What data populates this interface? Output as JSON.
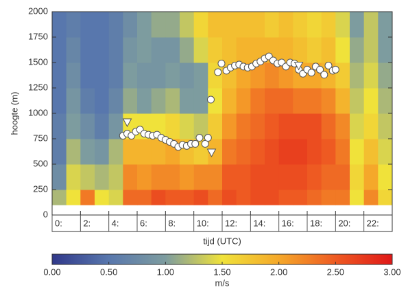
{
  "chart_data": {
    "type": "heatmap",
    "xlabel": "tijd (UTC)",
    "ylabel": "hoogte (m)",
    "colorbar_label": "m/s",
    "xlim": [
      0,
      24
    ],
    "ylim": [
      0,
      2000
    ],
    "xticks": [
      {
        "value": 0,
        "label": "0:"
      },
      {
        "value": 2,
        "label": "2:"
      },
      {
        "value": 4,
        "label": "4:"
      },
      {
        "value": 6,
        "label": "6:"
      },
      {
        "value": 8,
        "label": "8:"
      },
      {
        "value": 10,
        "label": "10:"
      },
      {
        "value": 12,
        "label": "12:"
      },
      {
        "value": 14,
        "label": "14:"
      },
      {
        "value": 16,
        "label": "16:"
      },
      {
        "value": 18,
        "label": "18:"
      },
      {
        "value": 20,
        "label": "20:"
      },
      {
        "value": 22,
        "label": "22:"
      }
    ],
    "yticks": [
      0,
      250,
      500,
      750,
      1000,
      1250,
      1500,
      1750,
      2000
    ],
    "clim": [
      0,
      3
    ],
    "cticks": [
      {
        "value": 0,
        "label": "0.00"
      },
      {
        "value": 0.5,
        "label": "0.50"
      },
      {
        "value": 1,
        "label": "1.00"
      },
      {
        "value": 1.5,
        "label": "1.50"
      },
      {
        "value": 2,
        "label": "2.00"
      },
      {
        "value": 2.5,
        "label": "2.50"
      },
      {
        "value": 3,
        "label": "3.00"
      }
    ],
    "colorscale": [
      "#30388a",
      "#5877ad",
      "#7d9c9f",
      "#f0e23a",
      "#f5a82a",
      "#ee5a22",
      "#e01818"
    ],
    "x_bins": [
      0,
      1,
      2,
      3,
      4,
      5,
      6,
      7,
      8,
      9,
      10,
      11,
      12,
      13,
      14,
      15,
      16,
      17,
      18,
      19,
      20,
      21,
      22,
      23,
      24
    ],
    "y_bins": [
      100,
      250,
      500,
      750,
      1000,
      1250,
      1500,
      1750,
      2000
    ],
    "values": [
      [
        1.2,
        0.8,
        0.6,
        0.6,
        0.5,
        0.5,
        0.5,
        0.5
      ],
      [
        1.5,
        1.4,
        1.2,
        1.0,
        0.9,
        0.8,
        0.7,
        0.6
      ],
      [
        2.3,
        1.3,
        1.0,
        0.8,
        0.6,
        0.5,
        0.5,
        0.5
      ],
      [
        1.5,
        1.2,
        0.9,
        0.6,
        0.5,
        0.5,
        0.5,
        0.5
      ],
      [
        1.4,
        1.3,
        1.2,
        0.9,
        0.7,
        0.6,
        0.6,
        0.6
      ],
      [
        2.4,
        2.2,
        1.9,
        1.5,
        1.1,
        1.0,
        0.9,
        0.8
      ],
      [
        2.4,
        2.1,
        1.9,
        1.5,
        1.0,
        0.9,
        1.0,
        1.0
      ],
      [
        2.6,
        2.2,
        1.9,
        1.5,
        1.1,
        0.9,
        0.9,
        1.1
      ],
      [
        2.5,
        2.2,
        2.0,
        1.6,
        1.2,
        1.0,
        0.9,
        1.1
      ],
      [
        2.5,
        2.1,
        1.8,
        1.4,
        1.0,
        0.9,
        1.1,
        1.3
      ],
      [
        2.6,
        2.2,
        1.7,
        1.3,
        1.0,
        1.0,
        1.4,
        1.6
      ],
      [
        2.4,
        2.2,
        1.9,
        1.7,
        1.5,
        1.6,
        1.7,
        1.8
      ],
      [
        2.6,
        2.5,
        2.3,
        2.1,
        1.9,
        1.8,
        1.8,
        1.8
      ],
      [
        2.5,
        2.5,
        2.4,
        2.3,
        2.1,
        2.0,
        1.9,
        1.8
      ],
      [
        2.6,
        2.6,
        2.5,
        2.4,
        2.3,
        2.1,
        1.9,
        1.8
      ],
      [
        2.6,
        2.6,
        2.6,
        2.5,
        2.4,
        2.2,
        1.9,
        1.7
      ],
      [
        2.5,
        2.6,
        2.7,
        2.6,
        2.4,
        2.1,
        1.9,
        1.8
      ],
      [
        2.5,
        2.6,
        2.7,
        2.6,
        2.3,
        2.0,
        1.8,
        1.7
      ],
      [
        2.4,
        2.5,
        2.6,
        2.6,
        2.3,
        2.0,
        1.7,
        1.6
      ],
      [
        2.3,
        2.4,
        2.5,
        2.4,
        2.2,
        1.9,
        1.8,
        1.7
      ],
      [
        2.3,
        2.4,
        2.3,
        2.2,
        1.9,
        1.7,
        1.5,
        1.4
      ],
      [
        1.5,
        1.6,
        1.5,
        1.4,
        1.3,
        1.2,
        1.1,
        1.0
      ],
      [
        2.2,
        2.0,
        1.8,
        1.6,
        1.5,
        1.4,
        1.3,
        1.3
      ],
      [
        1.6,
        1.5,
        1.4,
        1.3,
        1.2,
        1.1,
        1.0,
        1.0
      ]
    ],
    "circle_x": [
      5.0,
      5.3,
      5.6,
      5.9,
      6.2,
      6.5,
      6.8,
      7.1,
      7.4,
      7.7,
      8.0,
      8.3,
      8.6,
      8.9,
      9.2,
      9.5,
      9.8,
      10.1,
      10.4,
      10.8,
      11.0,
      11.2,
      11.7,
      11.95,
      12.3,
      12.6,
      12.9,
      13.2,
      13.5,
      13.8,
      14.1,
      14.4,
      14.7,
      15.0,
      15.3,
      15.6,
      15.9,
      16.2,
      16.5,
      16.8,
      17.1,
      17.4,
      17.7,
      18.0,
      18.3,
      18.6,
      18.9,
      19.2,
      19.5,
      19.8,
      20.0
    ],
    "circle_y": [
      780,
      800,
      780,
      820,
      840,
      800,
      790,
      780,
      790,
      760,
      740,
      720,
      700,
      670,
      690,
      680,
      700,
      700,
      760,
      700,
      760,
      1135,
      1405,
      1490,
      1420,
      1450,
      1470,
      1480,
      1460,
      1450,
      1460,
      1490,
      1510,
      1540,
      1560,
      1520,
      1490,
      1500,
      1460,
      1500,
      1490,
      1430,
      1390,
      1430,
      1400,
      1460,
      1430,
      1380,
      1470,
      1420,
      1430
    ],
    "triangle_x": [
      5.3,
      11.25,
      17.4
    ],
    "triangle_y": [
      912,
      615,
      1470
    ]
  }
}
